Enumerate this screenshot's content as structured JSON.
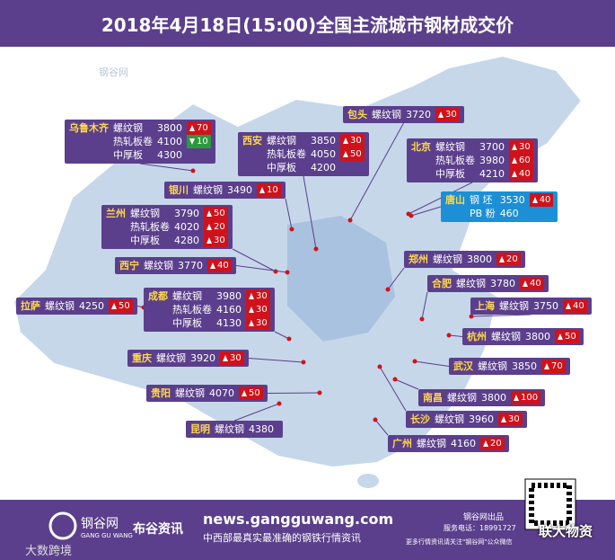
{
  "header": {
    "title": "2018年4月18日(15:00)全国主流城市钢材成交价"
  },
  "watermark": "钢谷网",
  "cities": [
    {
      "name": "乌鲁木齐",
      "rows": [
        {
          "product": "螺纹钢",
          "price": 3800,
          "change": 70,
          "direction": "up"
        },
        {
          "product": "热轧板卷",
          "price": 4100,
          "change": 10,
          "direction": "down"
        },
        {
          "product": "中厚板",
          "price": 4300
        }
      ]
    },
    {
      "name": "西安",
      "rows": [
        {
          "product": "螺纹钢",
          "price": 3850,
          "change": 30,
          "direction": "up"
        },
        {
          "product": "热轧板卷",
          "price": 4050,
          "change": 50,
          "direction": "up"
        },
        {
          "product": "中厚板",
          "price": 4200
        }
      ]
    },
    {
      "name": "包头",
      "rows": [
        {
          "product": "螺纹钢",
          "price": 3720,
          "change": 30,
          "direction": "up"
        }
      ]
    },
    {
      "name": "北京",
      "rows": [
        {
          "product": "螺纹钢",
          "price": 3700,
          "change": 30,
          "direction": "up"
        },
        {
          "product": "热轧板卷",
          "price": 3980,
          "change": 60,
          "direction": "up"
        },
        {
          "product": "中厚板",
          "price": 4210,
          "change": 40,
          "direction": "up"
        }
      ]
    },
    {
      "name": "唐山",
      "rows": [
        {
          "product": "钢 坯",
          "price": 3530,
          "change": 40,
          "direction": "up"
        },
        {
          "product": "PB 粉",
          "price": 460
        }
      ],
      "highlight": true
    },
    {
      "name": "银川",
      "rows": [
        {
          "product": "螺纹钢",
          "price": 3490,
          "change": 10,
          "direction": "up"
        }
      ]
    },
    {
      "name": "兰州",
      "rows": [
        {
          "product": "螺纹钢",
          "price": 3790,
          "change": 50,
          "direction": "up"
        },
        {
          "product": "热轧板卷",
          "price": 4020,
          "change": 20,
          "direction": "up"
        },
        {
          "product": "中厚板",
          "price": 4280,
          "change": 30,
          "direction": "up"
        }
      ]
    },
    {
      "name": "郑州",
      "rows": [
        {
          "product": "螺纹钢",
          "price": 3800,
          "change": 20,
          "direction": "up"
        }
      ]
    },
    {
      "name": "合肥",
      "rows": [
        {
          "product": "螺纹钢",
          "price": 3780,
          "change": 40,
          "direction": "up"
        }
      ]
    },
    {
      "name": "西宁",
      "rows": [
        {
          "product": "螺纹钢",
          "price": 3770,
          "change": 40,
          "direction": "up"
        }
      ]
    },
    {
      "name": "拉萨",
      "rows": [
        {
          "product": "螺纹钢",
          "price": 4250,
          "change": 50,
          "direction": "up"
        }
      ]
    },
    {
      "name": "成都",
      "rows": [
        {
          "product": "螺纹钢",
          "price": 3980,
          "change": 30,
          "direction": "up"
        },
        {
          "product": "热轧板卷",
          "price": 4160,
          "change": 30,
          "direction": "up"
        },
        {
          "product": "中厚板",
          "price": 4130,
          "change": 30,
          "direction": "up"
        }
      ]
    },
    {
      "name": "上海",
      "rows": [
        {
          "product": "螺纹钢",
          "price": 3750,
          "change": 40,
          "direction": "up"
        }
      ]
    },
    {
      "name": "杭州",
      "rows": [
        {
          "product": "螺纹钢",
          "price": 3800,
          "change": 50,
          "direction": "up"
        }
      ]
    },
    {
      "name": "重庆",
      "rows": [
        {
          "product": "螺纹钢",
          "price": 3920,
          "change": 30,
          "direction": "up"
        }
      ]
    },
    {
      "name": "武汉",
      "rows": [
        {
          "product": "螺纹钢",
          "price": 3850,
          "change": 70,
          "direction": "up"
        }
      ]
    },
    {
      "name": "贵阳",
      "rows": [
        {
          "product": "螺纹钢",
          "price": 4070,
          "change": 50,
          "direction": "up"
        }
      ]
    },
    {
      "name": "南昌",
      "rows": [
        {
          "product": "螺纹钢",
          "price": 3800,
          "change": 100,
          "direction": "up"
        }
      ]
    },
    {
      "name": "长沙",
      "rows": [
        {
          "product": "螺纹钢",
          "price": 3960,
          "change": 30,
          "direction": "up"
        }
      ]
    },
    {
      "name": "昆明",
      "rows": [
        {
          "product": "螺纹钢",
          "price": 4380
        }
      ]
    },
    {
      "name": "广州",
      "rows": [
        {
          "product": "螺纹钢",
          "price": 4160,
          "change": 20,
          "direction": "up"
        }
      ]
    }
  ],
  "footer": {
    "brand": "钢谷网",
    "brand_en": "GANG GU WANG",
    "sub_brand": "布谷资讯",
    "url": "news.gangguwang.com",
    "slogan": "中西部最真实最准确的钢铁行情资讯",
    "producer": "钢谷网出品",
    "phone": "服务电话：18991727",
    "follow": "更多行情资讯请关注\"钢谷网\"公众微信",
    "stamp": "联大物资",
    "corner": "大数跨境"
  }
}
